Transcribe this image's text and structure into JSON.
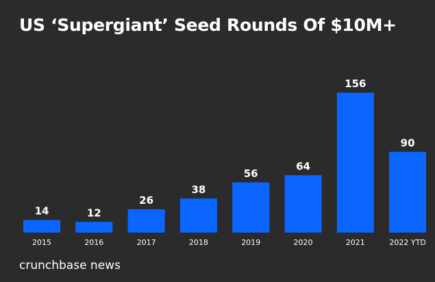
{
  "chart_data": {
    "type": "bar",
    "title": "US ‘Supergiant’ Seed Rounds Of $10M+",
    "categories": [
      "2015",
      "2016",
      "2017",
      "2018",
      "2019",
      "2020",
      "2021",
      "2022 YTD"
    ],
    "values": [
      14,
      12,
      26,
      38,
      56,
      64,
      156,
      90
    ],
    "xlabel": "",
    "ylabel": "",
    "ylim": [
      0,
      156
    ],
    "grid": false,
    "legend": "none",
    "bar_color": "#0a66ff",
    "background_color": "#2b2b2b",
    "text_color": "#ffffff"
  },
  "footer": {
    "source": "crunchbase news"
  }
}
